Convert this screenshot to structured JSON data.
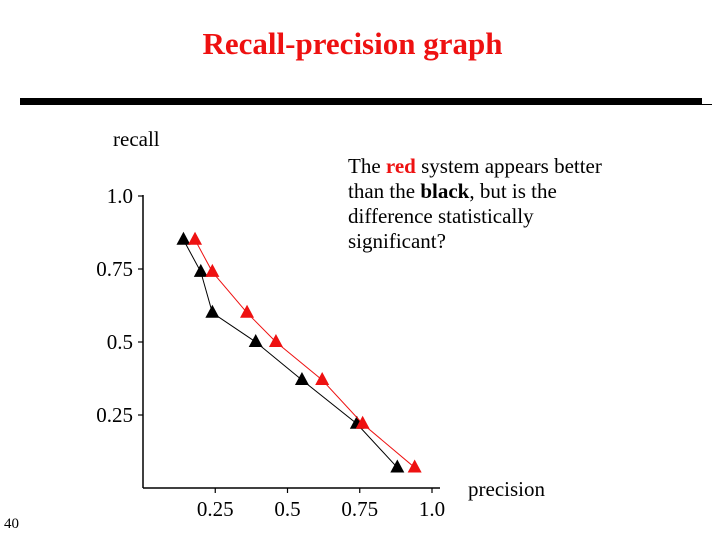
{
  "slide": {
    "title": "Recall-precision graph",
    "page_number": "40",
    "callout": {
      "part1": "The ",
      "red_word": "red",
      "part2": " system appears better than the ",
      "black_word": "black",
      "part3": ", but is the difference statistically significant?"
    }
  },
  "colors": {
    "title": "#ee1111",
    "red_series": "#ee1111",
    "black_series": "#000000"
  },
  "chart_data": {
    "type": "line",
    "xlabel": "precision",
    "ylabel": "recall",
    "x_ticks": [
      "0.25",
      "0.5",
      "0.75",
      "1.0"
    ],
    "y_ticks": [
      "1.0",
      "0.75",
      "0.5",
      "0.25"
    ],
    "x_tick_values": [
      0.25,
      0.5,
      0.75,
      1.0
    ],
    "y_tick_values": [
      1.0,
      0.75,
      0.5,
      0.25
    ],
    "xlim": [
      0,
      1.0
    ],
    "ylim": [
      0,
      1.0
    ],
    "grid": false,
    "marker": "triangle",
    "series": [
      {
        "color": "#000000",
        "points": [
          {
            "x": 0.14,
            "y": 0.85
          },
          {
            "x": 0.2,
            "y": 0.74
          },
          {
            "x": 0.24,
            "y": 0.6
          },
          {
            "x": 0.39,
            "y": 0.5
          },
          {
            "x": 0.55,
            "y": 0.37
          },
          {
            "x": 0.74,
            "y": 0.22
          },
          {
            "x": 0.88,
            "y": 0.07
          }
        ]
      },
      {
        "color": "#ee1111",
        "points": [
          {
            "x": 0.18,
            "y": 0.85
          },
          {
            "x": 0.24,
            "y": 0.74
          },
          {
            "x": 0.36,
            "y": 0.6
          },
          {
            "x": 0.46,
            "y": 0.5
          },
          {
            "x": 0.62,
            "y": 0.37
          },
          {
            "x": 0.76,
            "y": 0.22
          },
          {
            "x": 0.94,
            "y": 0.07
          }
        ]
      }
    ]
  }
}
